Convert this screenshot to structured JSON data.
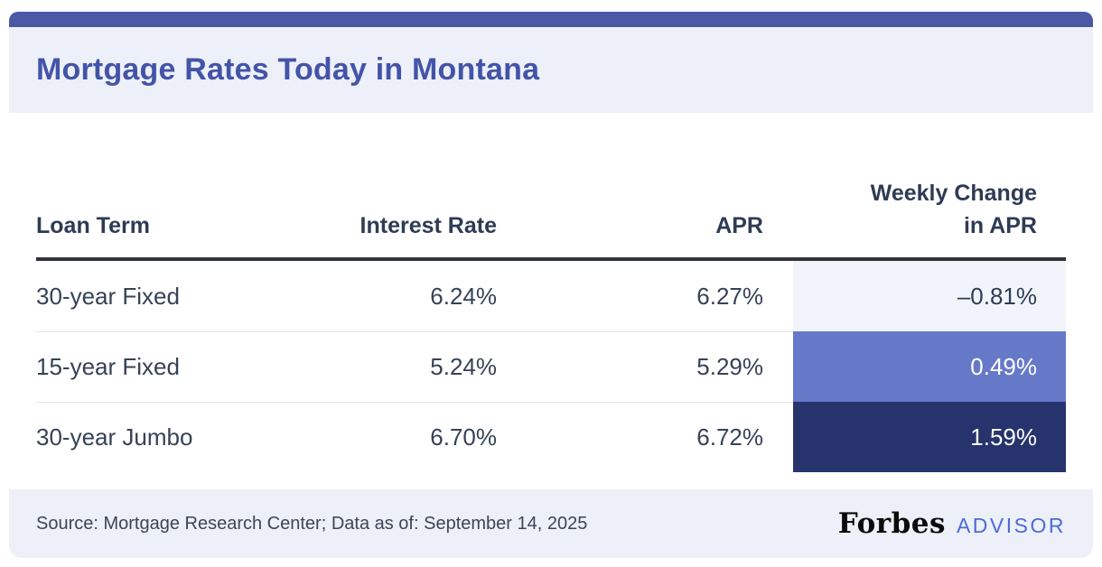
{
  "header": {
    "title": "Mortgage Rates Today in Montana"
  },
  "colors": {
    "accent_bar": "#4a58a5",
    "title_text": "#4354a8",
    "band_background": "#edf0f8",
    "header_text": "#2e3b54",
    "body_text": "#364257",
    "weekly_change_light": "#f2f4fb",
    "weekly_change_medium": "#6679c9",
    "weekly_change_dark": "#26336c",
    "advisor_blue": "#4c6bd8"
  },
  "table": {
    "columns": {
      "loan_term": "Loan Term",
      "interest_rate": "Interest Rate",
      "apr": "APR",
      "weekly_change_line1": "Weekly Change",
      "weekly_change_line2": "in APR"
    },
    "rows": [
      {
        "loan_term": "30-year Fixed",
        "interest_rate": "6.24%",
        "apr": "6.27%",
        "weekly_change": "–0.81%",
        "tone": "tone-light"
      },
      {
        "loan_term": "15-year Fixed",
        "interest_rate": "5.24%",
        "apr": "5.29%",
        "weekly_change": "0.49%",
        "tone": "tone-medium"
      },
      {
        "loan_term": "30-year Jumbo",
        "interest_rate": "6.70%",
        "apr": "6.72%",
        "weekly_change": "1.59%",
        "tone": "tone-dark"
      }
    ]
  },
  "footer": {
    "source": "Source: Mortgage Research Center; Data as of: September 14, 2025",
    "brand_name": "Forbes",
    "brand_suffix": "ADVISOR"
  },
  "chart_data": {
    "type": "table",
    "title": "Mortgage Rates Today in Montana",
    "columns": [
      "Loan Term",
      "Interest Rate",
      "APR",
      "Weekly Change in APR"
    ],
    "rows": [
      [
        "30-year Fixed",
        "6.24%",
        "6.27%",
        "-0.81%"
      ],
      [
        "15-year Fixed",
        "5.24%",
        "5.29%",
        "0.49%"
      ],
      [
        "30-year Jumbo",
        "6.70%",
        "6.72%",
        "1.59%"
      ]
    ],
    "notes": "Weekly Change in APR cells shaded by magnitude: -0.81% lightest, 0.49% medium indigo, 1.59% dark navy",
    "source": "Mortgage Research Center; Data as of: September 14, 2025"
  }
}
